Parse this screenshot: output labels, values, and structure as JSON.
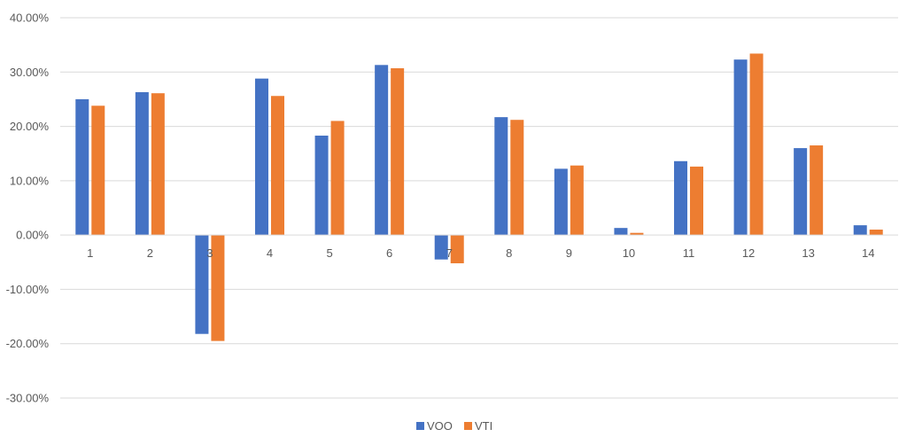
{
  "chart_data": {
    "type": "bar",
    "title": "",
    "xlabel": "",
    "ylabel": "",
    "categories": [
      "1",
      "2",
      "3",
      "4",
      "5",
      "6",
      "7",
      "8",
      "9",
      "10",
      "11",
      "12",
      "13",
      "14"
    ],
    "series": [
      {
        "name": "VOO",
        "color": "#4472C4",
        "values": [
          25.0,
          26.3,
          -18.2,
          28.8,
          18.3,
          31.3,
          -4.5,
          21.7,
          12.2,
          1.3,
          13.6,
          32.3,
          16.0,
          1.8
        ]
      },
      {
        "name": "VTI",
        "color": "#ED7D31",
        "values": [
          23.8,
          26.1,
          -19.5,
          25.6,
          21.0,
          30.7,
          -5.2,
          21.2,
          12.8,
          0.4,
          12.6,
          33.4,
          16.5,
          1.0
        ]
      }
    ],
    "ylim": [
      -30,
      40
    ],
    "yticks": [
      -30,
      -20,
      -10,
      0,
      10,
      20,
      30,
      40
    ],
    "ytick_labels": [
      "-30.00%",
      "-20.00%",
      "-10.00%",
      "0.00%",
      "10.00%",
      "20.00%",
      "30.00%",
      "40.00%"
    ],
    "grid": true,
    "legend_position": "bottom"
  }
}
